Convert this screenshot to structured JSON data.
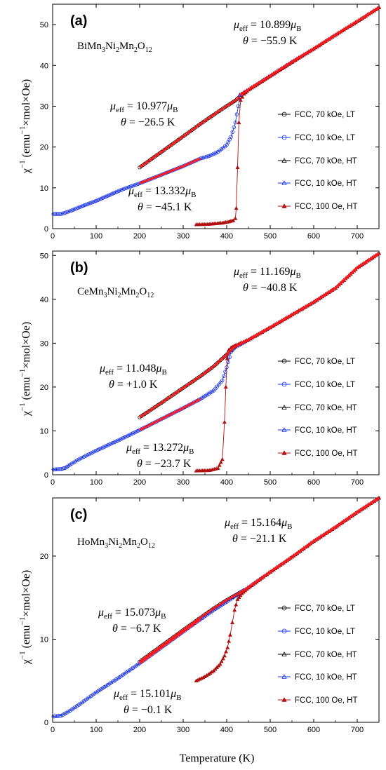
{
  "figure": {
    "xlabel": "Temperature (K)",
    "ylabel_prefix": "χ",
    "ylabel_sup": "−1",
    "ylabel_mid": " (emu",
    "ylabel_sup2": "−1",
    "ylabel_suffix": "×mol×Oe)"
  },
  "legend": [
    {
      "label": "FCC, 70 kOe, LT",
      "marker": "circle",
      "color": "#000000"
    },
    {
      "label": "FCC, 10 kOe, LT",
      "marker": "circle",
      "color": "#1a33e6"
    },
    {
      "label": "FCC, 70 kOe, HT",
      "marker": "triangle",
      "color": "#000000"
    },
    {
      "label": "FCC, 10 kOe, HT",
      "marker": "triangle",
      "color": "#1a33e6"
    },
    {
      "label": "FCC, 100 Oe, HT",
      "marker": "triangle-filled",
      "color": "#b01010"
    }
  ],
  "colors": {
    "fit": "#ff1a1a",
    "black": "#000000",
    "blue": "#1a33e6",
    "darkred": "#b01010"
  },
  "chart_data": [
    {
      "type": "scatter",
      "panel": "(a)",
      "compound": {
        "base": "BiMn",
        "s1": "3",
        "m1": "Ni",
        "s2": "2",
        "m2": "Mn",
        "s3": "2",
        "m3": "O",
        "s4": "12"
      },
      "xlim": [
        0,
        750
      ],
      "ylim": [
        0,
        55
      ],
      "xticks": [
        0,
        100,
        200,
        300,
        400,
        500,
        600,
        700
      ],
      "yticks": [
        0,
        10,
        20,
        30,
        40,
        50
      ],
      "fits": [
        {
          "mu": "10.899",
          "theta": "−55.9 K"
        },
        {
          "mu": "10.977",
          "theta": "−26.5 K"
        },
        {
          "mu": "13.332",
          "theta": "−45.1 K"
        }
      ],
      "series": [
        {
          "name": "FCC, 70 kOe, LT",
          "x": [
            200,
            250,
            300,
            340,
            370,
            395,
            410,
            420,
            430
          ],
          "y": [
            15,
            18.8,
            22.6,
            25.7,
            27.9,
            29.7,
            30.7,
            31.4,
            32.3
          ]
        },
        {
          "name": "FCC, 10 kOe, LT",
          "x": [
            2,
            20,
            40,
            70,
            100,
            130,
            160,
            200,
            250,
            300,
            340,
            360,
            380,
            400,
            410,
            420,
            430
          ],
          "y": [
            3.6,
            3.6,
            4.3,
            5.6,
            6.8,
            8.2,
            9.6,
            11.1,
            13.2,
            15.3,
            17.2,
            17.8,
            18.8,
            20.5,
            22.5,
            26,
            32
          ]
        },
        {
          "name": "FCC, 70 kOe, HT",
          "x": [
            430,
            450,
            500,
            550,
            600,
            650,
            700,
            750
          ],
          "y": [
            32.8,
            34.1,
            37.5,
            40.9,
            44.1,
            47.5,
            50.8,
            54.2
          ]
        },
        {
          "name": "FCC, 10 kOe, HT",
          "x": [
            430,
            450,
            500,
            550,
            600,
            650,
            700,
            750
          ],
          "y": [
            32.8,
            34.1,
            37.5,
            40.9,
            44.1,
            47.5,
            50.8,
            54.2
          ]
        },
        {
          "name": "FCC, 100 Oe, HT",
          "x": [
            330,
            360,
            390,
            405,
            415,
            420,
            422,
            425,
            428,
            432,
            440,
            450,
            500,
            550,
            600,
            650,
            700,
            750
          ],
          "y": [
            1,
            1.1,
            1.4,
            1.7,
            2,
            2.5,
            5,
            15,
            26,
            31.5,
            33,
            34,
            37.4,
            40.8,
            44.1,
            47.5,
            50.8,
            54.2
          ]
        }
      ]
    },
    {
      "type": "scatter",
      "panel": "(b)",
      "compound": {
        "base": "CeMn",
        "s1": "3",
        "m1": "Ni",
        "s2": "2",
        "m2": "Mn",
        "s3": "2",
        "m3": "O",
        "s4": "12"
      },
      "xlim": [
        0,
        750
      ],
      "ylim": [
        0,
        51
      ],
      "xticks": [
        0,
        100,
        200,
        300,
        400,
        500,
        600,
        700
      ],
      "yticks": [
        0,
        10,
        20,
        30,
        40,
        50
      ],
      "fits": [
        {
          "mu": "11.169",
          "theta": "−40.8 K"
        },
        {
          "mu": "11.048",
          "theta": "+1.0 K"
        },
        {
          "mu": "13.272",
          "theta": "−23.7 K"
        }
      ],
      "series": [
        {
          "name": "FCC, 70 kOe, LT",
          "x": [
            200,
            250,
            300,
            340,
            370,
            390,
            400,
            410,
            420
          ],
          "y": [
            13.1,
            16.4,
            19.8,
            22.5,
            24.7,
            26.5,
            27.4,
            28.4,
            29.3
          ]
        },
        {
          "name": "FCC, 10 kOe, LT",
          "x": [
            2,
            20,
            30,
            40,
            60,
            100,
            150,
            200,
            250,
            300,
            340,
            370,
            390,
            400,
            410,
            420
          ],
          "y": [
            1.2,
            1.3,
            1.6,
            2.3,
            3.5,
            5.5,
            7.8,
            10.2,
            12.7,
            15.2,
            17.3,
            19.2,
            21.5,
            24.5,
            28,
            29.2
          ]
        },
        {
          "name": "FCC, 70 kOe, HT",
          "x": [
            420,
            450,
            500,
            550,
            600,
            650,
            700,
            750
          ],
          "y": [
            29.2,
            30.8,
            33.6,
            36.5,
            39.4,
            42.6,
            47.2,
            50.5
          ]
        },
        {
          "name": "FCC, 10 kOe, HT",
          "x": [
            420,
            450,
            500,
            550,
            600,
            650,
            700,
            750
          ],
          "y": [
            29.2,
            30.8,
            33.6,
            36.5,
            39.4,
            42.6,
            47.2,
            50.5
          ]
        },
        {
          "name": "FCC, 100 Oe, HT",
          "x": [
            330,
            360,
            380,
            390,
            395,
            398,
            401,
            405,
            410,
            420,
            450,
            500,
            550,
            600,
            650,
            700,
            750
          ],
          "y": [
            0.9,
            1,
            1.5,
            3.5,
            12,
            20,
            26.5,
            28.5,
            29,
            29.5,
            30.8,
            33.6,
            36.5,
            39.4,
            42.6,
            47.2,
            50.5
          ]
        }
      ]
    },
    {
      "type": "scatter",
      "panel": "(c)",
      "compound": {
        "base": "HoMn",
        "s1": "3",
        "m1": "Ni",
        "s2": "2",
        "m2": "Mn",
        "s3": "2",
        "m3": "O",
        "s4": "12"
      },
      "xlim": [
        0,
        750
      ],
      "ylim": [
        0,
        27
      ],
      "xticks": [
        0,
        100,
        200,
        300,
        400,
        500,
        600,
        700
      ],
      "yticks": [
        0,
        10,
        20
      ],
      "fits": [
        {
          "mu": "15.164",
          "theta": "−21.1 K"
        },
        {
          "mu": "15.073",
          "theta": "−6.7 K"
        },
        {
          "mu": "15.101",
          "theta": "−0.1 K"
        }
      ],
      "series": [
        {
          "name": "FCC, 70 kOe, LT",
          "x": [
            200,
            250,
            300,
            340,
            370,
            400,
            420,
            440
          ],
          "y": [
            7.3,
            9.2,
            11.1,
            12.6,
            13.7,
            14.7,
            15.3,
            15.9
          ]
        },
        {
          "name": "FCC, 10 kOe, LT",
          "x": [
            2,
            20,
            40,
            60,
            100,
            150,
            200,
            250,
            300,
            340,
            370,
            400,
            420,
            440
          ],
          "y": [
            0.7,
            0.8,
            1.4,
            2.1,
            3.6,
            5.3,
            7.1,
            9,
            10.9,
            12.4,
            13.5,
            14.5,
            15.2,
            15.9
          ]
        },
        {
          "name": "FCC, 70 kOe, HT",
          "x": [
            440,
            500,
            550,
            600,
            650,
            700,
            750
          ],
          "y": [
            15.9,
            18.1,
            19.9,
            21.8,
            23.5,
            25.3,
            27
          ]
        },
        {
          "name": "FCC, 10 kOe, HT",
          "x": [
            440,
            500,
            550,
            600,
            650,
            700,
            750
          ],
          "y": [
            15.9,
            18.1,
            19.9,
            21.8,
            23.5,
            25.3,
            27
          ]
        },
        {
          "name": "FCC, 100 Oe, HT",
          "x": [
            330,
            350,
            370,
            385,
            395,
            402,
            408,
            413,
            418,
            425,
            435,
            450,
            500,
            550,
            600,
            650,
            700,
            750
          ],
          "y": [
            5,
            5.5,
            6.2,
            7,
            8,
            9,
            10.5,
            12,
            13.5,
            14.8,
            15.5,
            16.2,
            18.1,
            19.9,
            21.8,
            23.5,
            25.3,
            27
          ]
        }
      ]
    }
  ]
}
